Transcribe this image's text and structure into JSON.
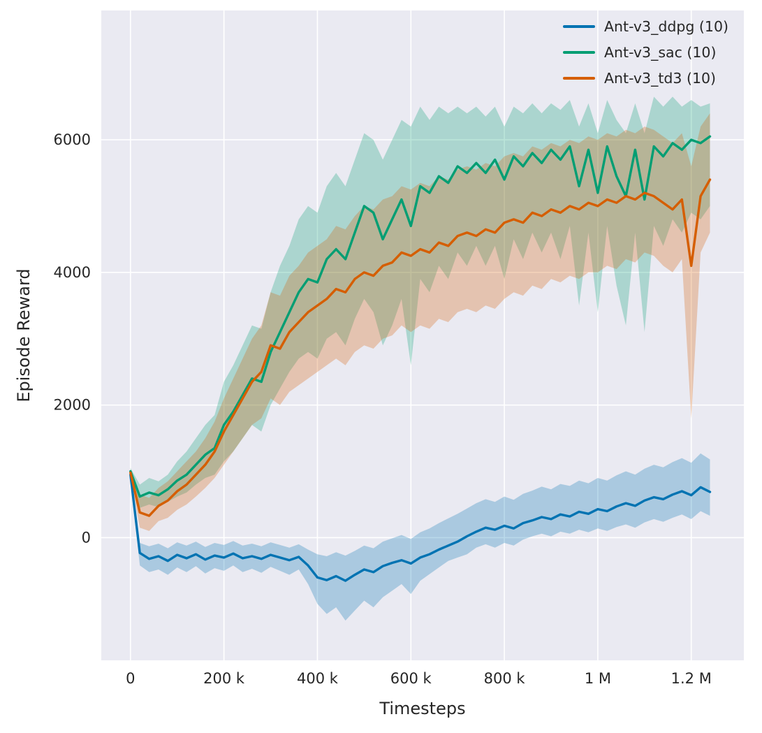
{
  "figure": {
    "background": "#ffffff",
    "plot_background": "#eaeaf2",
    "grid_color": "#ffffff",
    "text_color": "#262626"
  },
  "chart_data": {
    "type": "line",
    "title": "",
    "xlabel": "Timesteps",
    "ylabel": "Episode Reward",
    "grid": true,
    "legend_position": "upper right",
    "xlim": [
      -62500,
      1312500
    ],
    "ylim": [
      -1850,
      7950
    ],
    "x_ticks": [
      {
        "value": 0,
        "label": "0"
      },
      {
        "value": 200000,
        "label": "200 k"
      },
      {
        "value": 400000,
        "label": "400 k"
      },
      {
        "value": 600000,
        "label": "600 k"
      },
      {
        "value": 800000,
        "label": "800 k"
      },
      {
        "value": 1000000,
        "label": "1 M"
      },
      {
        "value": 1200000,
        "label": "1.2 M"
      }
    ],
    "y_ticks": [
      {
        "value": 0,
        "label": "0"
      },
      {
        "value": 2000,
        "label": "2000"
      },
      {
        "value": 4000,
        "label": "4000"
      },
      {
        "value": 6000,
        "label": "6000"
      }
    ],
    "x_unit": 1000,
    "x": [
      0,
      20,
      40,
      60,
      80,
      100,
      120,
      140,
      160,
      180,
      200,
      220,
      240,
      260,
      280,
      300,
      320,
      340,
      360,
      380,
      400,
      420,
      440,
      460,
      480,
      500,
      520,
      540,
      560,
      580,
      600,
      620,
      640,
      660,
      680,
      700,
      720,
      740,
      760,
      780,
      800,
      820,
      840,
      860,
      880,
      900,
      920,
      940,
      960,
      980,
      1000,
      1020,
      1040,
      1060,
      1080,
      1100,
      1120,
      1140,
      1160,
      1180,
      1200,
      1220,
      1240
    ],
    "band_alpha": 0.27,
    "series": [
      {
        "name": "Ant-v3_ddpg (10)",
        "color": "#0173b2",
        "mean": [
          950,
          -230,
          -320,
          -280,
          -350,
          -260,
          -310,
          -250,
          -330,
          -270,
          -300,
          -240,
          -310,
          -280,
          -320,
          -260,
          -300,
          -340,
          -290,
          -420,
          -600,
          -640,
          -580,
          -650,
          -560,
          -480,
          -520,
          -430,
          -380,
          -340,
          -390,
          -300,
          -250,
          -180,
          -120,
          -60,
          20,
          90,
          150,
          120,
          180,
          140,
          220,
          260,
          310,
          280,
          350,
          320,
          390,
          360,
          430,
          400,
          470,
          520,
          480,
          560,
          610,
          580,
          650,
          700,
          640,
          760,
          690
        ],
        "low": [
          850,
          -420,
          -520,
          -480,
          -560,
          -450,
          -520,
          -430,
          -540,
          -460,
          -500,
          -420,
          -520,
          -470,
          -530,
          -440,
          -500,
          -560,
          -480,
          -700,
          -1000,
          -1150,
          -1050,
          -1250,
          -1100,
          -950,
          -1050,
          -900,
          -800,
          -700,
          -850,
          -650,
          -550,
          -450,
          -350,
          -300,
          -250,
          -150,
          -100,
          -150,
          -80,
          -120,
          -30,
          20,
          60,
          20,
          90,
          60,
          120,
          80,
          140,
          100,
          160,
          200,
          150,
          230,
          280,
          240,
          300,
          350,
          280,
          400,
          330
        ],
        "high": [
          1000,
          -80,
          -130,
          -90,
          -160,
          -70,
          -120,
          -60,
          -140,
          -80,
          -110,
          -50,
          -120,
          -90,
          -130,
          -70,
          -110,
          -150,
          -100,
          -180,
          -250,
          -280,
          -220,
          -270,
          -200,
          -120,
          -160,
          -60,
          -10,
          40,
          -20,
          80,
          140,
          220,
          290,
          360,
          440,
          520,
          580,
          540,
          620,
          570,
          660,
          710,
          770,
          730,
          810,
          780,
          860,
          820,
          900,
          860,
          940,
          1000,
          950,
          1040,
          1100,
          1060,
          1140,
          1200,
          1130,
          1270,
          1180
        ]
      },
      {
        "name": "Ant-v3_sac (10)",
        "color": "#029e73",
        "mean": [
          1000,
          620,
          680,
          640,
          730,
          860,
          950,
          1100,
          1250,
          1350,
          1700,
          1900,
          2150,
          2400,
          2350,
          2800,
          3100,
          3400,
          3700,
          3900,
          3850,
          4200,
          4350,
          4200,
          4600,
          5000,
          4900,
          4500,
          4800,
          5100,
          4700,
          5300,
          5200,
          5450,
          5350,
          5600,
          5500,
          5650,
          5500,
          5700,
          5400,
          5750,
          5600,
          5800,
          5650,
          5850,
          5700,
          5900,
          5300,
          5850,
          5200,
          5900,
          5450,
          5150,
          5850,
          5100,
          5900,
          5750,
          5950,
          5850,
          6000,
          5950,
          6050
        ],
        "low": [
          950,
          450,
          500,
          460,
          540,
          620,
          680,
          800,
          900,
          950,
          1150,
          1300,
          1500,
          1700,
          1600,
          2000,
          2250,
          2500,
          2700,
          2800,
          2700,
          3000,
          3100,
          2900,
          3300,
          3600,
          3400,
          2900,
          3200,
          3600,
          2600,
          3900,
          3700,
          4100,
          3900,
          4300,
          4100,
          4400,
          4100,
          4400,
          3900,
          4500,
          4200,
          4600,
          4300,
          4600,
          4200,
          4700,
          3500,
          4600,
          3400,
          4700,
          3800,
          3200,
          4600,
          3100,
          4700,
          4400,
          4800,
          4600,
          4900,
          4800,
          5000
        ],
        "high": [
          1050,
          800,
          900,
          850,
          950,
          1150,
          1300,
          1500,
          1700,
          1850,
          2350,
          2600,
          2900,
          3200,
          3150,
          3700,
          4100,
          4400,
          4800,
          5000,
          4900,
          5300,
          5500,
          5300,
          5700,
          6100,
          6000,
          5700,
          6000,
          6300,
          6200,
          6500,
          6300,
          6500,
          6400,
          6500,
          6400,
          6500,
          6350,
          6500,
          6200,
          6500,
          6400,
          6550,
          6400,
          6550,
          6450,
          6600,
          6200,
          6550,
          6100,
          6600,
          6300,
          6100,
          6550,
          6100,
          6650,
          6500,
          6650,
          6500,
          6600,
          6500,
          6550
        ]
      },
      {
        "name": "Ant-v3_td3 (10)",
        "color": "#d55e00",
        "mean": [
          980,
          380,
          330,
          480,
          560,
          700,
          800,
          950,
          1100,
          1300,
          1600,
          1850,
          2100,
          2350,
          2500,
          2900,
          2850,
          3100,
          3250,
          3400,
          3500,
          3600,
          3750,
          3700,
          3900,
          4000,
          3950,
          4100,
          4150,
          4300,
          4250,
          4350,
          4300,
          4450,
          4400,
          4550,
          4600,
          4550,
          4650,
          4600,
          4750,
          4800,
          4750,
          4900,
          4850,
          4950,
          4900,
          5000,
          4950,
          5050,
          5000,
          5100,
          5050,
          5150,
          5100,
          5200,
          5150,
          5050,
          4950,
          5100,
          4100,
          5150,
          5400
        ],
        "low": [
          930,
          150,
          100,
          250,
          300,
          420,
          500,
          620,
          750,
          900,
          1100,
          1300,
          1500,
          1700,
          1800,
          2100,
          2000,
          2200,
          2300,
          2400,
          2500,
          2600,
          2700,
          2600,
          2800,
          2900,
          2850,
          3000,
          3050,
          3200,
          3100,
          3200,
          3150,
          3300,
          3250,
          3400,
          3450,
          3400,
          3500,
          3450,
          3600,
          3700,
          3650,
          3800,
          3750,
          3900,
          3850,
          3950,
          3900,
          4000,
          4000,
          4100,
          4050,
          4200,
          4150,
          4300,
          4250,
          4100,
          4000,
          4200,
          1800,
          4300,
          4600
        ],
        "high": [
          1030,
          650,
          600,
          750,
          850,
          1000,
          1150,
          1300,
          1500,
          1750,
          2100,
          2400,
          2700,
          3000,
          3200,
          3700,
          3650,
          3950,
          4100,
          4300,
          4400,
          4500,
          4700,
          4650,
          4850,
          5000,
          4950,
          5100,
          5150,
          5300,
          5250,
          5350,
          5300,
          5450,
          5400,
          5550,
          5600,
          5550,
          5650,
          5600,
          5750,
          5800,
          5750,
          5900,
          5850,
          5950,
          5900,
          6000,
          5950,
          6050,
          6000,
          6100,
          6050,
          6150,
          6100,
          6200,
          6150,
          6050,
          5950,
          6100,
          5600,
          6200,
          6400
        ]
      }
    ]
  }
}
